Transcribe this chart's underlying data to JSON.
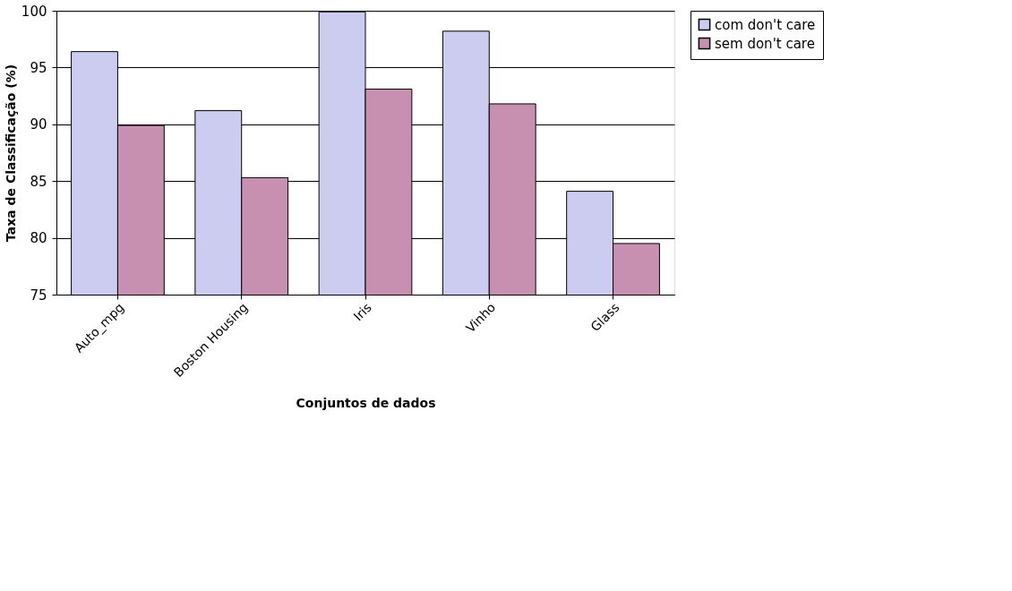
{
  "chart_data": {
    "type": "bar",
    "xlabel": "Conjuntos de dados",
    "ylabel": "Taxa de Classificação (%)",
    "categories": [
      "Auto_mpg",
      "Boston Housing",
      "Iris",
      "Vinho",
      "Glass"
    ],
    "series": [
      {
        "name": "com don't care",
        "color": "#ccccf0",
        "values": [
          96.4,
          91.2,
          99.9,
          98.2,
          84.1
        ]
      },
      {
        "name": "sem don't care",
        "color": "#c890b0",
        "values": [
          89.9,
          85.3,
          93.1,
          91.8,
          79.5
        ]
      }
    ],
    "ylim": [
      75,
      100
    ],
    "yticks": [
      75,
      80,
      85,
      90,
      95,
      100
    ],
    "grid": "y",
    "legend": "right"
  }
}
